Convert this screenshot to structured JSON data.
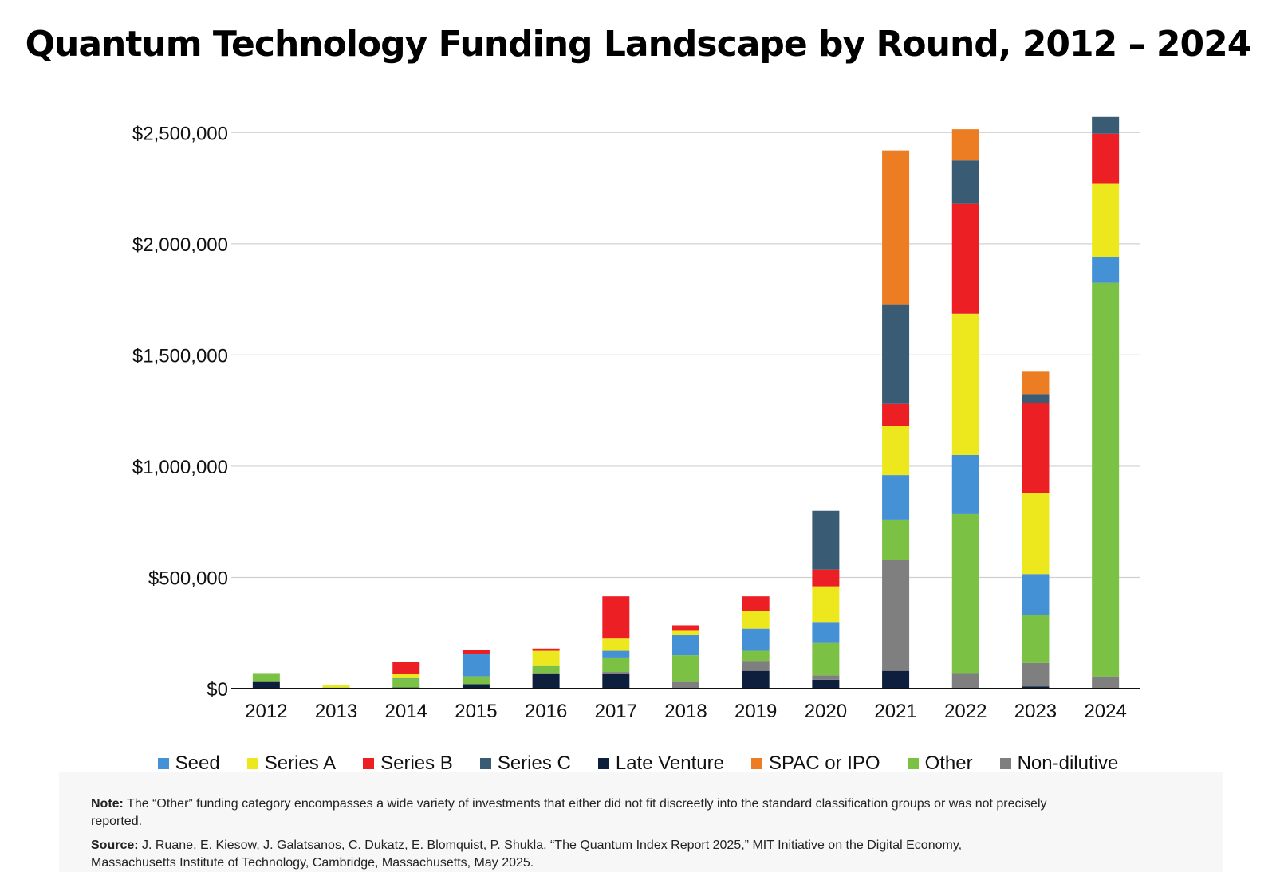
{
  "title": "Quantum Technology Funding Landscape by Round, 2012 – 2024",
  "chart_data": {
    "type": "bar",
    "stacked": true,
    "title": "Quantum Technology Funding Landscape by Round, 2012 – 2024",
    "xlabel": "",
    "ylabel": "",
    "ylim": [
      0,
      2580000
    ],
    "yticks": [
      0,
      500000,
      1000000,
      1500000,
      2000000,
      2500000
    ],
    "ytick_labels": [
      "$0",
      "$500,000",
      "$1,000,000",
      "$1,500,000",
      "$2,000,000",
      "$2,500,000"
    ],
    "grid": true,
    "legend_position": "bottom",
    "categories": [
      "2012",
      "2013",
      "2014",
      "2015",
      "2016",
      "2017",
      "2018",
      "2019",
      "2020",
      "2021",
      "2022",
      "2023",
      "2024"
    ],
    "series": [
      {
        "name": "Late Venture",
        "color": "#0d1f3c",
        "values": [
          30000,
          0,
          5000,
          20000,
          65000,
          65000,
          0,
          80000,
          40000,
          80000,
          0,
          10000,
          0
        ]
      },
      {
        "name": "Non-dilutive",
        "color": "#7f7f7f",
        "values": [
          0,
          0,
          0,
          0,
          5000,
          10000,
          30000,
          45000,
          20000,
          500000,
          70000,
          105000,
          55000
        ]
      },
      {
        "name": "Other",
        "color": "#7bc143",
        "values": [
          40000,
          5000,
          40000,
          35000,
          35000,
          65000,
          120000,
          45000,
          145000,
          180000,
          715000,
          215000,
          1770000
        ]
      },
      {
        "name": "Seed",
        "color": "#4591d5",
        "values": [
          0,
          0,
          5000,
          100000,
          0,
          30000,
          90000,
          100000,
          95000,
          200000,
          265000,
          185000,
          115000
        ]
      },
      {
        "name": "Series A",
        "color": "#ede81e",
        "values": [
          0,
          10000,
          15000,
          0,
          65000,
          55000,
          20000,
          80000,
          160000,
          220000,
          635000,
          365000,
          330000
        ]
      },
      {
        "name": "Series B",
        "color": "#ec1f24",
        "values": [
          0,
          0,
          55000,
          20000,
          10000,
          190000,
          25000,
          65000,
          75000,
          100000,
          495000,
          405000,
          225000
        ]
      },
      {
        "name": "Series C",
        "color": "#3a5b74",
        "values": [
          0,
          0,
          0,
          0,
          0,
          0,
          0,
          0,
          265000,
          445000,
          195000,
          40000,
          75000
        ]
      },
      {
        "name": "SPAC or IPO",
        "color": "#ed7d23",
        "values": [
          0,
          0,
          0,
          0,
          0,
          0,
          0,
          0,
          0,
          695000,
          140000,
          100000,
          0
        ]
      }
    ]
  },
  "legend": [
    {
      "label": "Seed",
      "color": "#4591d5"
    },
    {
      "label": "Series A",
      "color": "#ede81e"
    },
    {
      "label": "Series B",
      "color": "#ec1f24"
    },
    {
      "label": "Series C",
      "color": "#3a5b74"
    },
    {
      "label": "Late Venture",
      "color": "#0d1f3c"
    },
    {
      "label": "SPAC or IPO",
      "color": "#ed7d23"
    },
    {
      "label": "Other",
      "color": "#7bc143"
    },
    {
      "label": "Non-dilutive",
      "color": "#7f7f7f"
    }
  ],
  "notes": {
    "note_label": "Note:",
    "note_text": "The “Other” funding category encompasses a wide variety of investments that either did not fit discreetly into the standard classification groups or was not precisely reported.",
    "source_label": "Source:",
    "source_text": "J. Ruane, E. Kiesow, J. Galatsanos, C. Dukatz, E. Blomquist, P. Shukla, “The Quantum Index Report 2025,” MIT Initiative on the Digital Economy, Massachusetts Institute of Technology, Cambridge, Massachusetts, May 2025."
  }
}
